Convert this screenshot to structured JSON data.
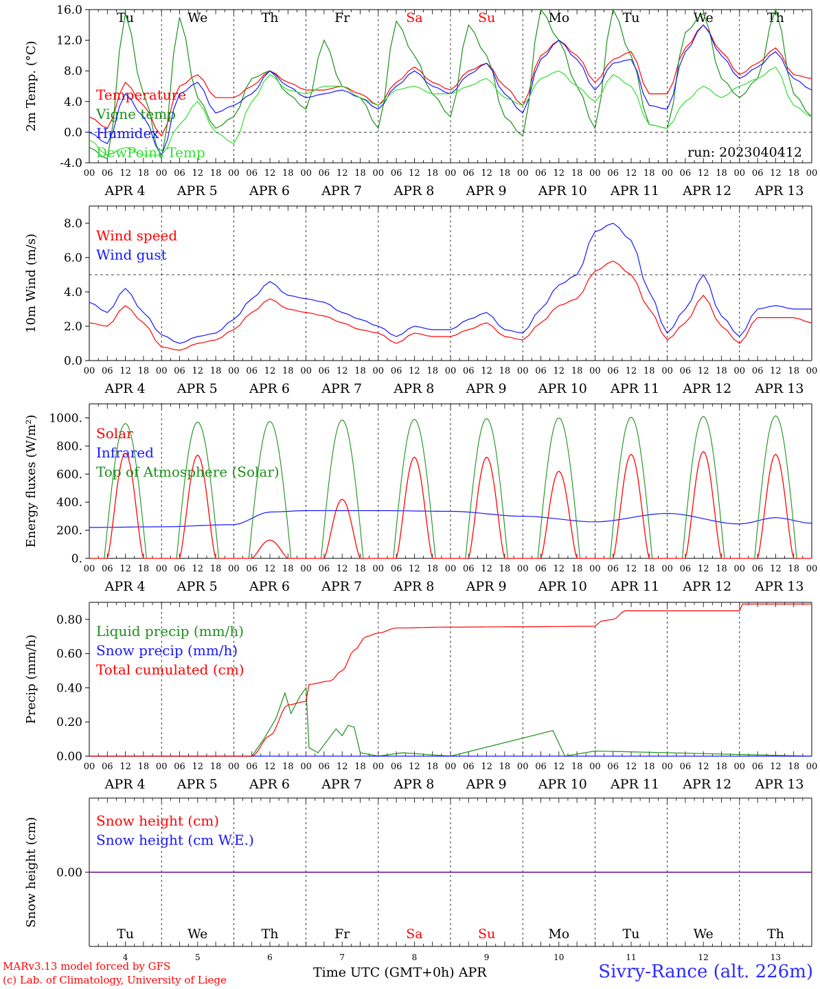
{
  "colors": {
    "red": "#ff0000",
    "darkgreen": "#1a8f1a",
    "blue": "#1515ff",
    "lightgreen": "#33dd33",
    "purple": "#7a2a9a",
    "black": "#000000"
  },
  "days": {
    "weekdays": [
      "Tu",
      "We",
      "Th",
      "Fr",
      "Sa",
      "Su",
      "Mo",
      "Tu",
      "We",
      "Th"
    ],
    "weekend_flags": [
      false,
      false,
      false,
      false,
      true,
      true,
      false,
      false,
      false,
      false
    ],
    "date_labels": [
      "APR  4",
      "APR  5",
      "APR  6",
      "APR  7",
      "APR  8",
      "APR  9",
      "APR 10",
      "APR 11",
      "APR 12",
      "APR 13"
    ],
    "day_numbers": [
      "4",
      "5",
      "6",
      "7",
      "8",
      "9",
      "10",
      "11",
      "12",
      "13"
    ],
    "hour_ticks": [
      "00",
      "06",
      "12",
      "18"
    ],
    "end_tick": "00"
  },
  "run_label": "run: 2023040412",
  "footer": {
    "model": "MARv3.13 model forced by GFS",
    "credit": "(c) Lab. of Climatology, University of Liege",
    "xaxis_title": "Time UTC (GMT+0h) APR",
    "station": "Sivry-Rance (alt. 226m)"
  },
  "chart_data": [
    {
      "type": "line",
      "ylabel": "2m Temp. (°C)",
      "ylim": [
        -4,
        16
      ],
      "yticks": [
        "16.0",
        "12.0",
        "8.0",
        "4.0",
        "0.0",
        "-4.0"
      ],
      "ytick_values": [
        16,
        12,
        8,
        4,
        0,
        -4
      ],
      "ref_line": 0,
      "x_hours": [
        0,
        6,
        12,
        18,
        24,
        30,
        36,
        42,
        48,
        54,
        60,
        66,
        72,
        78,
        84,
        90,
        96,
        102,
        108,
        114,
        120,
        126,
        132,
        138,
        144,
        150,
        156,
        162,
        168,
        174,
        180,
        186,
        192,
        198,
        204,
        210,
        216,
        222,
        228,
        234,
        240
      ],
      "series": [
        {
          "name": "Temperature",
          "color": "red",
          "values": [
            2.0,
            0.5,
            6.5,
            3.5,
            -0.5,
            6.0,
            7.5,
            4.5,
            4.5,
            6.0,
            8.0,
            6.5,
            5.5,
            5.5,
            6.0,
            5.0,
            3.5,
            6.5,
            8.5,
            6.5,
            5.5,
            8.0,
            9.0,
            6.0,
            3.5,
            10.0,
            12.0,
            10.0,
            6.5,
            9.5,
            10.5,
            5.0,
            5.0,
            11.0,
            14.0,
            10.5,
            7.5,
            9.0,
            11.0,
            7.5,
            7.0
          ]
        },
        {
          "name": "Vigne temp",
          "color": "darkgreen",
          "values": [
            -2.0,
            -3.5,
            15.5,
            5.0,
            -3.5,
            15.0,
            4.5,
            0.5,
            2.0,
            7.0,
            8.0,
            5.0,
            3.0,
            12.0,
            6.0,
            4.5,
            0.5,
            14.5,
            10.0,
            5.0,
            2.0,
            14.0,
            10.0,
            2.0,
            -0.5,
            16.0,
            12.0,
            6.0,
            0.5,
            16.0,
            10.0,
            1.0,
            0.5,
            13.0,
            15.5,
            7.0,
            4.5,
            7.0,
            16.0,
            5.0,
            2.0
          ]
        },
        {
          "name": "Humidex",
          "color": "blue",
          "values": [
            0.0,
            -1.5,
            5.0,
            2.0,
            -3.0,
            5.0,
            6.5,
            2.5,
            3.5,
            5.0,
            8.0,
            6.0,
            4.5,
            5.0,
            5.5,
            4.5,
            3.0,
            6.0,
            8.0,
            6.0,
            5.0,
            7.5,
            9.0,
            5.0,
            2.5,
            9.5,
            12.0,
            9.5,
            5.5,
            9.0,
            9.5,
            3.5,
            3.0,
            10.5,
            14.0,
            10.0,
            7.0,
            8.5,
            10.5,
            7.0,
            5.5
          ]
        },
        {
          "name": "DewPoint Temp",
          "color": "lightgreen",
          "values": [
            -1.0,
            -3.0,
            -2.0,
            -3.0,
            -3.0,
            1.0,
            4.0,
            0.0,
            -1.5,
            4.0,
            7.5,
            5.5,
            5.0,
            6.0,
            6.0,
            4.5,
            3.5,
            5.5,
            6.0,
            5.0,
            5.0,
            6.0,
            7.0,
            4.5,
            3.5,
            7.0,
            8.0,
            6.0,
            4.0,
            7.5,
            6.0,
            1.0,
            0.5,
            4.0,
            6.0,
            4.5,
            6.0,
            7.0,
            8.5,
            3.5,
            2.0
          ]
        }
      ]
    },
    {
      "type": "line",
      "ylabel": "10m Wind (m/s)",
      "ylim": [
        0,
        9
      ],
      "yticks": [
        "8.0",
        "6.0",
        "4.0",
        "2.0",
        "0.0"
      ],
      "ytick_values": [
        8,
        6,
        4,
        2,
        0
      ],
      "ref_line": 5,
      "x_hours": [
        0,
        6,
        12,
        18,
        24,
        30,
        36,
        42,
        48,
        54,
        60,
        66,
        72,
        78,
        84,
        90,
        96,
        102,
        108,
        114,
        120,
        126,
        132,
        138,
        144,
        150,
        156,
        162,
        168,
        174,
        180,
        186,
        192,
        198,
        204,
        210,
        216,
        222,
        228,
        234,
        240
      ],
      "series": [
        {
          "name": "Wind speed",
          "color": "red",
          "values": [
            2.2,
            2.0,
            3.2,
            2.2,
            0.8,
            0.6,
            1.0,
            1.2,
            1.8,
            2.8,
            3.6,
            3.0,
            2.8,
            2.6,
            2.2,
            1.8,
            1.6,
            1.0,
            1.6,
            1.4,
            1.4,
            1.8,
            2.2,
            1.4,
            1.2,
            2.2,
            3.2,
            3.6,
            5.2,
            5.8,
            5.0,
            3.0,
            1.2,
            2.2,
            3.8,
            2.0,
            1.0,
            2.5,
            2.5,
            2.5,
            2.2
          ]
        },
        {
          "name": "Wind gust",
          "color": "blue",
          "values": [
            3.4,
            2.8,
            4.2,
            2.8,
            1.5,
            1.0,
            1.4,
            1.6,
            2.4,
            3.6,
            4.6,
            3.8,
            3.6,
            3.4,
            2.8,
            2.4,
            2.0,
            1.4,
            2.0,
            1.8,
            1.8,
            2.4,
            2.8,
            1.8,
            1.6,
            3.0,
            4.4,
            5.0,
            7.5,
            8.0,
            7.0,
            4.0,
            1.6,
            3.0,
            5.0,
            2.6,
            1.4,
            3.0,
            3.2,
            3.0,
            3.0
          ]
        }
      ]
    },
    {
      "type": "line",
      "ylabel": "Energy fluxes (W/m²)",
      "ylim": [
        0,
        1100
      ],
      "yticks": [
        "1000.",
        "800.",
        "600.",
        "400.",
        "200.",
        "0."
      ],
      "ytick_values": [
        1000,
        800,
        600,
        400,
        200,
        0
      ],
      "solar_peaks": [
        750,
        735,
        130,
        420,
        720,
        720,
        620,
        740,
        760,
        740
      ],
      "toa_peaks": [
        960,
        970,
        975,
        985,
        990,
        995,
        1000,
        1005,
        1010,
        1015
      ],
      "series": [
        {
          "name": "Solar",
          "color": "red"
        },
        {
          "name": "Infrared",
          "color": "blue",
          "x_hours": [
            0,
            24,
            48,
            60,
            72,
            96,
            120,
            144,
            168,
            192,
            216,
            228,
            240
          ],
          "values": [
            220,
            225,
            240,
            330,
            340,
            340,
            335,
            300,
            260,
            320,
            245,
            290,
            250
          ]
        },
        {
          "name": "Top of Atmosphere (Solar)",
          "color": "darkgreen"
        }
      ]
    },
    {
      "type": "line",
      "ylabel": "Precip (mm/h)",
      "ylim": [
        0,
        0.9
      ],
      "yticks": [
        "0.80",
        "0.60",
        "0.40",
        "0.20",
        "0.00"
      ],
      "ytick_values": [
        0.8,
        0.6,
        0.4,
        0.2,
        0.0
      ],
      "series": [
        {
          "name": "Liquid precip (mm/h)",
          "color": "darkgreen",
          "x_hours": [
            0,
            54,
            58,
            62,
            65,
            67,
            70,
            72,
            73,
            76,
            82,
            84,
            86,
            88,
            90,
            96,
            104,
            120,
            154,
            158,
            168,
            240
          ],
          "values": [
            0,
            0,
            0.1,
            0.22,
            0.37,
            0.25,
            0.35,
            0.4,
            0.05,
            0.02,
            0.16,
            0.12,
            0.18,
            0.17,
            0.02,
            0.0,
            0.02,
            0.0,
            0.15,
            0.0,
            0.03,
            0.0
          ]
        },
        {
          "name": "Snow precip (mm/h)",
          "color": "blue",
          "x_hours": [
            0,
            240
          ],
          "values": [
            0,
            0
          ]
        },
        {
          "name": "Total cumulated (cm)",
          "color": "red",
          "x_hours": [
            0,
            54,
            60,
            66,
            72,
            73,
            80,
            84,
            88,
            92,
            96,
            102,
            120,
            144,
            168,
            170,
            174,
            178,
            216,
            217,
            240
          ],
          "values": [
            0,
            0,
            0.12,
            0.3,
            0.32,
            0.42,
            0.44,
            0.5,
            0.62,
            0.7,
            0.72,
            0.75,
            0.755,
            0.757,
            0.76,
            0.79,
            0.8,
            0.85,
            0.85,
            0.89,
            0.89
          ]
        }
      ]
    },
    {
      "type": "line",
      "ylabel": "Snow height (cm)",
      "ylim": [
        -1,
        1
      ],
      "yticks": [
        "0.00"
      ],
      "ytick_values": [
        0
      ],
      "series": [
        {
          "name": "Snow height (cm)",
          "color": "red",
          "x_hours": [
            0,
            240
          ],
          "values": [
            0,
            0
          ]
        },
        {
          "name": "Snow height (cm W.E.)",
          "color": "blue",
          "x_hours": [
            0,
            240
          ],
          "values": [
            0,
            0
          ]
        }
      ]
    }
  ]
}
